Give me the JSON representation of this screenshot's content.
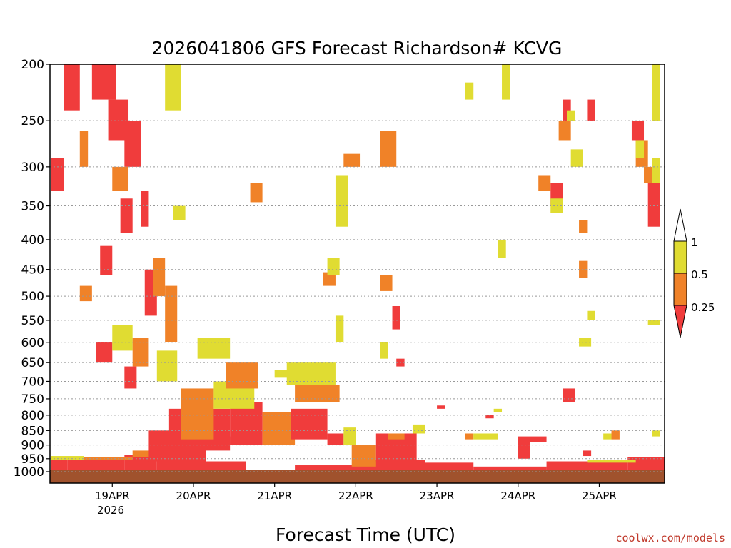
{
  "chart_data": {
    "type": "heatmap",
    "title": "2026041806 GFS Forecast Richardson# KCVG",
    "xlabel": "Forecast Time (UTC)",
    "ylabel": "",
    "credit": "coolwx.com/models",
    "y_axis": {
      "scale": "pressure (inverted)",
      "range": [
        1000,
        200
      ],
      "ticks": [
        200,
        250,
        300,
        350,
        400,
        450,
        500,
        550,
        600,
        650,
        700,
        750,
        800,
        850,
        900,
        950,
        1000
      ],
      "grid": true
    },
    "x_axis": {
      "range": [
        "18APR 06Z",
        "25APR 18Z"
      ],
      "ticks": [
        "19APR",
        "20APR",
        "21APR",
        "22APR",
        "23APR",
        "24APR",
        "25APR"
      ],
      "year_label": "2026"
    },
    "legend": {
      "placement": "right",
      "classes": [
        {
          "label": "0.25",
          "range": "< 0.25",
          "color": "#f03c3c"
        },
        {
          "label": "0.5",
          "range": "0.25–0.5",
          "color": "#f08228"
        },
        {
          "label": "1",
          "range": "0.5–1",
          "color": "#e0dc32"
        },
        {
          "range": "> 1",
          "color": "#ffffff"
        }
      ]
    },
    "colors": {
      "ground": "#a0522d",
      "low": "#f03c3c",
      "mid": "#f08228",
      "high": "#e0dc32"
    },
    "cells": [
      {
        "t0": 0.0,
        "t1": 0.2,
        "p0": 1000,
        "p1": 950,
        "c": "low"
      },
      {
        "t0": 0.2,
        "t1": 0.9,
        "p0": 1000,
        "p1": 950,
        "c": "low"
      },
      {
        "t0": 0.9,
        "t1": 1.3,
        "p0": 1000,
        "p1": 935,
        "c": "low"
      },
      {
        "t0": 1.3,
        "t1": 1.9,
        "p0": 1000,
        "p1": 930,
        "c": "low"
      },
      {
        "t0": 1.9,
        "t1": 2.4,
        "p0": 1000,
        "p1": 960,
        "c": "low"
      },
      {
        "t0": 3.0,
        "t1": 3.9,
        "p0": 1000,
        "p1": 975,
        "c": "low"
      },
      {
        "t0": 3.9,
        "t1": 4.6,
        "p0": 1000,
        "p1": 955,
        "c": "low"
      },
      {
        "t0": 4.6,
        "t1": 5.2,
        "p0": 1000,
        "p1": 965,
        "c": "low"
      },
      {
        "t0": 5.2,
        "t1": 6.1,
        "p0": 1000,
        "p1": 980,
        "c": "low"
      },
      {
        "t0": 6.1,
        "t1": 7.1,
        "p0": 1000,
        "p1": 960,
        "c": "low"
      },
      {
        "t0": 7.1,
        "t1": 7.6,
        "p0": 1000,
        "p1": 945,
        "c": "low"
      },
      {
        "t0": 0.0,
        "t1": 0.4,
        "p0": 955,
        "p1": 940,
        "c": "high"
      },
      {
        "t0": 0.4,
        "t1": 1.0,
        "p0": 955,
        "p1": 945,
        "c": "mid"
      },
      {
        "t0": 1.0,
        "t1": 1.4,
        "p0": 945,
        "p1": 920,
        "c": "mid"
      },
      {
        "t0": 6.6,
        "t1": 7.2,
        "p0": 965,
        "p1": 955,
        "c": "high"
      },
      {
        "t0": 1.2,
        "t1": 1.9,
        "p0": 960,
        "p1": 850,
        "c": "low"
      },
      {
        "t0": 1.45,
        "t1": 2.2,
        "p0": 920,
        "p1": 780,
        "c": "low"
      },
      {
        "t0": 1.6,
        "t1": 2.0,
        "p0": 880,
        "p1": 720,
        "c": "mid"
      },
      {
        "t0": 2.2,
        "t1": 2.6,
        "p0": 900,
        "p1": 760,
        "c": "low"
      },
      {
        "t0": 2.0,
        "t1": 2.5,
        "p0": 780,
        "p1": 700,
        "c": "high"
      },
      {
        "t0": 2.6,
        "t1": 3.0,
        "p0": 900,
        "p1": 790,
        "c": "mid"
      },
      {
        "t0": 2.15,
        "t1": 2.55,
        "p0": 720,
        "p1": 650,
        "c": "mid"
      },
      {
        "t0": 1.8,
        "t1": 2.2,
        "p0": 640,
        "p1": 590,
        "c": "high"
      },
      {
        "t0": 2.95,
        "t1": 3.4,
        "p0": 880,
        "p1": 780,
        "c": "low"
      },
      {
        "t0": 3.0,
        "t1": 3.55,
        "p0": 760,
        "p1": 710,
        "c": "mid"
      },
      {
        "t0": 2.9,
        "t1": 3.5,
        "p0": 710,
        "p1": 650,
        "c": "high"
      },
      {
        "t0": 3.4,
        "t1": 3.6,
        "p0": 900,
        "p1": 860,
        "c": "low"
      },
      {
        "t0": 0.55,
        "t1": 0.75,
        "p0": 650,
        "p1": 600,
        "c": "low"
      },
      {
        "t0": 0.75,
        "t1": 1.0,
        "p0": 620,
        "p1": 560,
        "c": "high"
      },
      {
        "t0": 1.0,
        "t1": 1.2,
        "p0": 660,
        "p1": 590,
        "c": "mid"
      },
      {
        "t0": 0.9,
        "t1": 1.05,
        "p0": 720,
        "p1": 660,
        "c": "low"
      },
      {
        "t0": 1.3,
        "t1": 1.55,
        "p0": 700,
        "p1": 620,
        "c": "high"
      },
      {
        "t0": 1.15,
        "t1": 1.3,
        "p0": 540,
        "p1": 450,
        "c": "low"
      },
      {
        "t0": 1.25,
        "t1": 1.4,
        "p0": 500,
        "p1": 430,
        "c": "mid"
      },
      {
        "t0": 1.4,
        "t1": 1.55,
        "p0": 600,
        "p1": 480,
        "c": "mid"
      },
      {
        "t0": 0.35,
        "t1": 0.5,
        "p0": 510,
        "p1": 480,
        "c": "mid"
      },
      {
        "t0": 0.6,
        "t1": 0.75,
        "p0": 460,
        "p1": 410,
        "c": "low"
      },
      {
        "t0": 0.85,
        "t1": 1.0,
        "p0": 390,
        "p1": 340,
        "c": "low"
      },
      {
        "t0": 0.9,
        "t1": 1.1,
        "p0": 300,
        "p1": 250,
        "c": "low"
      },
      {
        "t0": 0.7,
        "t1": 0.95,
        "p0": 270,
        "p1": 230,
        "c": "low"
      },
      {
        "t0": 0.5,
        "t1": 0.8,
        "p0": 230,
        "p1": 200,
        "c": "low"
      },
      {
        "t0": 0.15,
        "t1": 0.35,
        "p0": 240,
        "p1": 200,
        "c": "low"
      },
      {
        "t0": 0.35,
        "t1": 0.45,
        "p0": 300,
        "p1": 260,
        "c": "mid"
      },
      {
        "t0": 0.0,
        "t1": 0.15,
        "p0": 330,
        "p1": 290,
        "c": "low"
      },
      {
        "t0": 0.75,
        "t1": 0.95,
        "p0": 330,
        "p1": 300,
        "c": "mid"
      },
      {
        "t0": 1.1,
        "t1": 1.2,
        "p0": 380,
        "p1": 330,
        "c": "low"
      },
      {
        "t0": 1.4,
        "t1": 1.6,
        "p0": 240,
        "p1": 200,
        "c": "high"
      },
      {
        "t0": 1.5,
        "t1": 1.65,
        "p0": 370,
        "p1": 350,
        "c": "high"
      },
      {
        "t0": 2.2,
        "t1": 2.45,
        "p0": 900,
        "p1": 870,
        "c": "low"
      },
      {
        "t0": 2.75,
        "t1": 3.0,
        "p0": 690,
        "p1": 670,
        "c": "high"
      },
      {
        "t0": 2.45,
        "t1": 2.6,
        "p0": 345,
        "p1": 320,
        "c": "mid"
      },
      {
        "t0": 3.5,
        "t1": 3.65,
        "p0": 380,
        "p1": 310,
        "c": "high"
      },
      {
        "t0": 3.6,
        "t1": 3.8,
        "p0": 300,
        "p1": 285,
        "c": "mid"
      },
      {
        "t0": 3.35,
        "t1": 3.5,
        "p0": 480,
        "p1": 455,
        "c": "mid"
      },
      {
        "t0": 3.4,
        "t1": 3.55,
        "p0": 460,
        "p1": 430,
        "c": "high"
      },
      {
        "t0": 3.5,
        "t1": 3.6,
        "p0": 600,
        "p1": 540,
        "c": "high"
      },
      {
        "t0": 3.6,
        "t1": 3.75,
        "p0": 900,
        "p1": 840,
        "c": "high"
      },
      {
        "t0": 3.7,
        "t1": 4.0,
        "p0": 980,
        "p1": 900,
        "c": "mid"
      },
      {
        "t0": 4.0,
        "t1": 4.5,
        "p0": 960,
        "p1": 860,
        "c": "low"
      },
      {
        "t0": 4.15,
        "t1": 4.35,
        "p0": 880,
        "p1": 860,
        "c": "mid"
      },
      {
        "t0": 4.45,
        "t1": 4.6,
        "p0": 860,
        "p1": 830,
        "c": "high"
      },
      {
        "t0": 4.05,
        "t1": 4.25,
        "p0": 300,
        "p1": 260,
        "c": "mid"
      },
      {
        "t0": 4.2,
        "t1": 4.3,
        "p0": 570,
        "p1": 520,
        "c": "low"
      },
      {
        "t0": 4.05,
        "t1": 4.15,
        "p0": 640,
        "p1": 600,
        "c": "high"
      },
      {
        "t0": 4.25,
        "t1": 4.35,
        "p0": 660,
        "p1": 640,
        "c": "low"
      },
      {
        "t0": 4.05,
        "t1": 4.2,
        "p0": 490,
        "p1": 460,
        "c": "mid"
      },
      {
        "t0": 4.75,
        "t1": 4.85,
        "p0": 780,
        "p1": 770,
        "c": "low"
      },
      {
        "t0": 5.1,
        "t1": 5.2,
        "p0": 880,
        "p1": 860,
        "c": "mid"
      },
      {
        "t0": 5.2,
        "t1": 5.5,
        "p0": 880,
        "p1": 860,
        "c": "high"
      },
      {
        "t0": 5.35,
        "t1": 5.45,
        "p0": 810,
        "p1": 800,
        "c": "low"
      },
      {
        "t0": 5.45,
        "t1": 5.55,
        "p0": 790,
        "p1": 780,
        "c": "high"
      },
      {
        "t0": 5.75,
        "t1": 6.1,
        "p0": 890,
        "p1": 870,
        "c": "low"
      },
      {
        "t0": 5.75,
        "t1": 5.9,
        "p0": 950,
        "p1": 880,
        "c": "low"
      },
      {
        "t0": 5.55,
        "t1": 5.65,
        "p0": 230,
        "p1": 200,
        "c": "high"
      },
      {
        "t0": 5.1,
        "t1": 5.2,
        "p0": 230,
        "p1": 215,
        "c": "high"
      },
      {
        "t0": 5.5,
        "t1": 5.6,
        "p0": 430,
        "p1": 400,
        "c": "high"
      },
      {
        "t0": 6.3,
        "t1": 6.45,
        "p0": 760,
        "p1": 720,
        "c": "low"
      },
      {
        "t0": 6.15,
        "t1": 6.3,
        "p0": 350,
        "p1": 320,
        "c": "low"
      },
      {
        "t0": 6.0,
        "t1": 6.15,
        "p0": 330,
        "p1": 310,
        "c": "mid"
      },
      {
        "t0": 6.15,
        "t1": 6.3,
        "p0": 360,
        "p1": 340,
        "c": "high"
      },
      {
        "t0": 6.25,
        "t1": 6.4,
        "p0": 270,
        "p1": 250,
        "c": "mid"
      },
      {
        "t0": 6.4,
        "t1": 6.55,
        "p0": 300,
        "p1": 280,
        "c": "high"
      },
      {
        "t0": 6.3,
        "t1": 6.4,
        "p0": 250,
        "p1": 230,
        "c": "low"
      },
      {
        "t0": 6.35,
        "t1": 6.45,
        "p0": 250,
        "p1": 240,
        "c": "high"
      },
      {
        "t0": 6.5,
        "t1": 6.6,
        "p0": 390,
        "p1": 370,
        "c": "mid"
      },
      {
        "t0": 6.5,
        "t1": 6.6,
        "p0": 465,
        "p1": 435,
        "c": "mid"
      },
      {
        "t0": 6.5,
        "t1": 6.65,
        "p0": 610,
        "p1": 590,
        "c": "high"
      },
      {
        "t0": 6.55,
        "t1": 6.65,
        "p0": 940,
        "p1": 920,
        "c": "low"
      },
      {
        "t0": 6.6,
        "t1": 6.7,
        "p0": 250,
        "p1": 230,
        "c": "low"
      },
      {
        "t0": 6.6,
        "t1": 6.7,
        "p0": 550,
        "p1": 530,
        "c": "high"
      },
      {
        "t0": 6.9,
        "t1": 7.0,
        "p0": 880,
        "p1": 850,
        "c": "mid"
      },
      {
        "t0": 6.8,
        "t1": 6.9,
        "p0": 880,
        "p1": 860,
        "c": "high"
      },
      {
        "t0": 7.15,
        "t1": 7.3,
        "p0": 270,
        "p1": 250,
        "c": "low"
      },
      {
        "t0": 7.2,
        "t1": 7.35,
        "p0": 300,
        "p1": 270,
        "c": "mid"
      },
      {
        "t0": 7.3,
        "t1": 7.45,
        "p0": 320,
        "p1": 300,
        "c": "mid"
      },
      {
        "t0": 7.35,
        "t1": 7.5,
        "p0": 380,
        "p1": 320,
        "c": "low"
      },
      {
        "t0": 7.4,
        "t1": 7.5,
        "p0": 250,
        "p1": 200,
        "c": "high"
      },
      {
        "t0": 7.4,
        "t1": 7.5,
        "p0": 320,
        "p1": 290,
        "c": "high"
      },
      {
        "t0": 7.2,
        "t1": 7.3,
        "p0": 290,
        "p1": 270,
        "c": "high"
      },
      {
        "t0": 7.35,
        "t1": 7.5,
        "p0": 560,
        "p1": 550,
        "c": "high"
      },
      {
        "t0": 7.4,
        "t1": 7.5,
        "p0": 870,
        "p1": 850,
        "c": "high"
      }
    ]
  }
}
